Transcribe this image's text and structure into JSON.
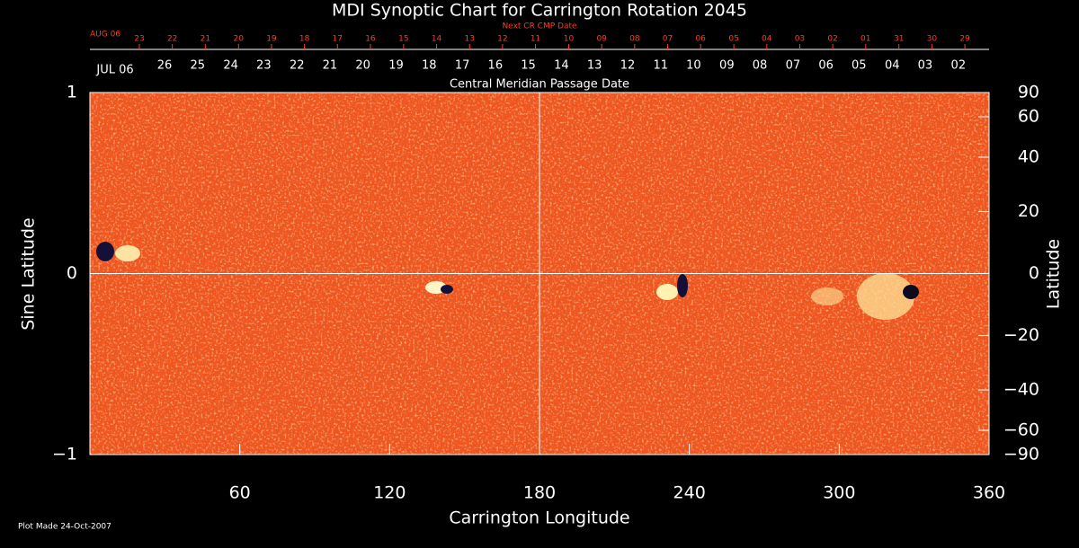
{
  "chart_data": {
    "type": "synoptic",
    "title": "MDI Synoptic Chart for Carrington Rotation 2045",
    "x_label": "Carrington Longitude",
    "y_label": "Sine Latitude",
    "y2_label": "Latitude",
    "xlim": [
      0,
      360
    ],
    "xticks": [
      60,
      120,
      180,
      240,
      300,
      360
    ],
    "ylim": [
      -1,
      1
    ],
    "yticks": [
      {
        "value": -1,
        "label": "−1"
      },
      0,
      1
    ],
    "y2lim": [
      -90,
      90
    ],
    "y2scale": "sine",
    "y2ticks": [
      90,
      60,
      40,
      20,
      0,
      {
        "value": -20,
        "label": "−20"
      },
      {
        "value": -40,
        "label": "−40"
      },
      {
        "value": -60,
        "label": "−60"
      },
      {
        "value": -90,
        "label": "−90"
      }
    ],
    "crosshair": true,
    "cmp_axis": {
      "label": "Central Meridian Passage Date",
      "month": "JUL 06",
      "color": "#ffffff",
      "categories": [
        "26",
        "25",
        "24",
        "23",
        "22",
        "21",
        "20",
        "19",
        "18",
        "17",
        "16",
        "15",
        "14",
        "13",
        "12",
        "11",
        "10",
        "09",
        "08",
        "07",
        "06",
        "05",
        "04",
        "03",
        "02"
      ],
      "x": [
        29.9,
        43.1,
        56.4,
        69.6,
        82.9,
        96.1,
        109.3,
        122.6,
        135.8,
        149.1,
        162.3,
        175.5,
        188.8,
        202.0,
        215.3,
        228.5,
        241.7,
        255.0,
        268.2,
        281.5,
        294.7,
        307.9,
        321.2,
        334.4,
        347.7
      ]
    },
    "next_cmp_axis": {
      "label": "Next CR CMP Date",
      "month": "AUG 06",
      "color": "#ff3c1e",
      "categories": [
        "23",
        "22",
        "21",
        "20",
        "19",
        "18",
        "17",
        "16",
        "15",
        "14",
        "13",
        "12",
        "11",
        "10",
        "09",
        "08",
        "07",
        "06",
        "05",
        "04",
        "03",
        "02",
        "01",
        "31",
        "30",
        "29"
      ],
      "x": [
        19.8,
        33.0,
        46.2,
        59.5,
        72.7,
        85.9,
        99.1,
        112.3,
        125.6,
        138.8,
        152.0,
        165.2,
        178.4,
        191.7,
        204.9,
        218.1,
        231.3,
        244.5,
        257.8,
        271.0,
        284.2,
        297.4,
        310.6,
        323.9,
        337.1,
        350.3
      ]
    },
    "footer": "Plot Made 24-Oct-2007"
  }
}
